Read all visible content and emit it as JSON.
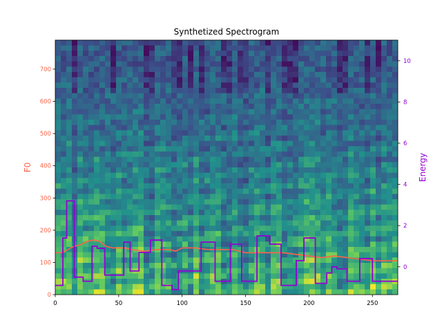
{
  "chart_data": {
    "type": "line",
    "title": "Synthetized Spectrogram",
    "xlabel": "",
    "xlim": [
      0,
      270
    ],
    "x_ticks": [
      0,
      50,
      100,
      150,
      200,
      250
    ],
    "y_left": {
      "label": "F0",
      "color": "#ff6347",
      "ylim": [
        0,
        790
      ],
      "ticks": [
        0,
        100,
        200,
        300,
        400,
        500,
        600,
        700
      ]
    },
    "y_right": {
      "label": "Energy",
      "color": "#9400d3",
      "ylim": [
        -1.35,
        11.0
      ],
      "ticks": [
        0,
        2,
        4,
        6,
        8,
        10
      ]
    },
    "background": {
      "type": "heatmap",
      "description_colormap": "viridis",
      "colormap_stops": [
        "#440154",
        "#3b528b",
        "#21918c",
        "#5ec962",
        "#fde725"
      ]
    },
    "series": [
      {
        "name": "F0",
        "axis": "left",
        "color": "#ff6347",
        "x": [
          0,
          5,
          8,
          10,
          12,
          15,
          20,
          25,
          30,
          35,
          40,
          45,
          50,
          55,
          60,
          70,
          80,
          90,
          95,
          100,
          110,
          120,
          130,
          140,
          150,
          160,
          170,
          180,
          190,
          200,
          210,
          220,
          230,
          240,
          250,
          260,
          270
        ],
        "values": [
          130,
          130,
          135,
          140,
          145,
          150,
          155,
          165,
          170,
          165,
          150,
          145,
          145,
          145,
          140,
          135,
          140,
          140,
          135,
          145,
          145,
          140,
          140,
          140,
          130,
          130,
          130,
          130,
          125,
          120,
          115,
          120,
          115,
          110,
          105,
          105,
          105
        ]
      },
      {
        "name": "Energy",
        "axis": "right",
        "color": "#9400d3",
        "x": [
          0,
          6,
          6,
          9,
          9,
          15,
          15,
          22,
          22,
          29,
          29,
          33,
          33,
          39,
          39,
          54,
          54,
          59,
          59,
          66,
          66,
          75,
          75,
          84,
          84,
          92,
          92,
          97,
          97,
          115,
          115,
          126,
          126,
          138,
          138,
          147,
          147,
          159,
          159,
          169,
          169,
          178,
          178,
          190,
          190,
          196,
          196,
          205,
          205,
          214,
          214,
          218,
          218,
          222,
          222,
          230,
          230,
          240,
          240,
          250,
          250,
          255,
          255,
          270
        ],
        "values": [
          -0.9,
          -0.9,
          1.4,
          1.4,
          3.2,
          3.2,
          -0.5,
          -0.5,
          -0.7,
          -0.7,
          1.0,
          1.0,
          0.9,
          0.9,
          -0.4,
          -0.4,
          1.2,
          1.2,
          -0.2,
          -0.2,
          0.7,
          0.7,
          1.3,
          1.3,
          -0.9,
          -0.9,
          -1.1,
          -1.1,
          -0.2,
          -0.2,
          1.2,
          1.2,
          -0.7,
          -0.7,
          1.1,
          1.1,
          -0.7,
          -0.7,
          1.5,
          1.5,
          1.1,
          1.1,
          -0.9,
          -0.9,
          0.3,
          0.3,
          1.4,
          1.4,
          -0.8,
          -0.8,
          -0.3,
          -0.3,
          0.0,
          0.0,
          -0.1,
          -0.1,
          -0.7,
          -0.7,
          0.4,
          0.4,
          -0.7,
          -0.7,
          -0.7,
          -0.7
        ]
      }
    ]
  }
}
